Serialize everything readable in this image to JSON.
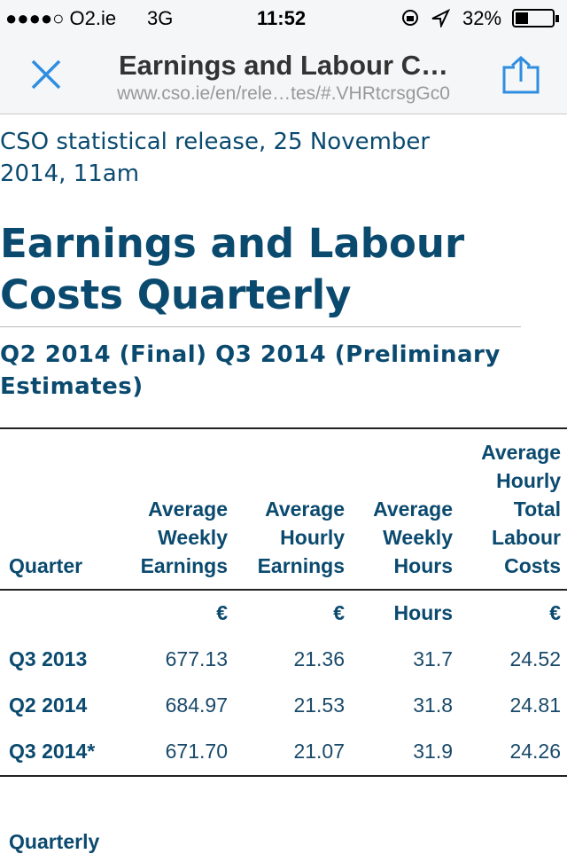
{
  "status_bar": {
    "carrier": "●●●●○ O2.ie",
    "network": "3G",
    "time": "11:52",
    "battery": "32%"
  },
  "browser": {
    "title": "Earnings and Labour C…",
    "url": "www.cso.ie/en/rele…tes/#.VHRtcrsgGc0"
  },
  "page": {
    "release": "CSO statistical release, 25 November 2014, 11am",
    "title": "Earnings and Labour Costs Quarterly",
    "subtitle": "Q2 2014 (Final) Q3 2014 (Preliminary Estimates)",
    "next_heading": "Quarterly"
  },
  "table": {
    "header": [
      "Quarter",
      "Average Weekly Earnings",
      "Average Hourly Earnings",
      "Average Weekly Hours",
      "Average Hourly Total Labour Costs"
    ],
    "units": [
      "€",
      "€",
      "Hours",
      "€"
    ],
    "rows": [
      [
        "Q3 2013",
        "677.13",
        "21.36",
        "31.7",
        "24.52"
      ],
      [
        "Q2 2014",
        "684.97",
        "21.53",
        "31.8",
        "24.81"
      ],
      [
        "Q3 2014*",
        "671.70",
        "21.07",
        "31.9",
        "24.26"
      ]
    ]
  }
}
